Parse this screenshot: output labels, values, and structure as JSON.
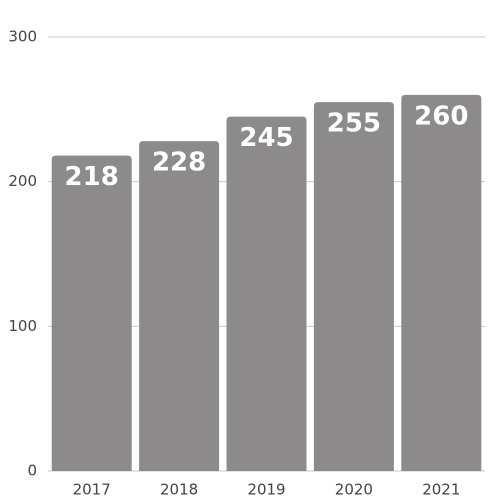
{
  "chart_data": {
    "type": "bar",
    "categories": [
      "2017",
      "2018",
      "2019",
      "2020",
      "2021"
    ],
    "values": [
      218,
      228,
      245,
      255,
      260
    ],
    "color": "#8c8a8a",
    "ylim": [
      0,
      300
    ],
    "yticks": [
      0,
      100,
      200,
      300
    ],
    "grid": true
  }
}
